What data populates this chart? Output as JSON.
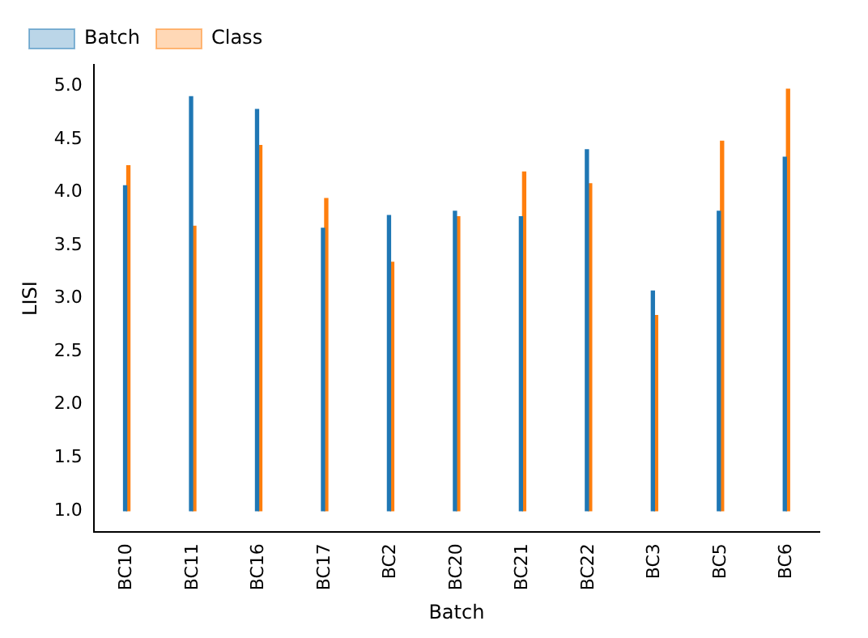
{
  "chart_data": {
    "type": "bar",
    "xlabel": "Batch",
    "ylabel": "LISI",
    "categories": [
      "BC10",
      "BC11",
      "BC16",
      "BC17",
      "BC2",
      "BC20",
      "BC21",
      "BC22",
      "BC3",
      "BC5",
      "BC6"
    ],
    "series": [
      {
        "name": "Batch",
        "color": "#1f77b4",
        "base": [
          1,
          1,
          1,
          1,
          1,
          1,
          1,
          1,
          1,
          1,
          1
        ],
        "values": [
          3.06,
          3.9,
          3.78,
          2.66,
          2.78,
          2.82,
          2.77,
          3.4,
          2.07,
          2.82,
          3.33
        ]
      },
      {
        "name": "Class",
        "color": "#ff7f0e",
        "base": [
          1,
          1,
          1,
          1,
          1,
          1,
          1,
          1,
          1,
          1,
          1
        ],
        "values": [
          3.25,
          2.68,
          3.44,
          2.94,
          2.34,
          2.77,
          3.19,
          3.08,
          1.84,
          3.48,
          3.97
        ]
      }
    ],
    "ylim": [
      0.8,
      5.2
    ],
    "yticks": [
      {
        "value": 1,
        "label": "1.0"
      },
      1.5,
      {
        "value": 2,
        "label": "2.0"
      },
      2.5,
      {
        "value": 3,
        "label": "3.0"
      },
      3.5,
      {
        "value": 4,
        "label": "4.0"
      },
      4.5,
      {
        "value": 5,
        "label": "5.0"
      }
    ],
    "legend": "top left"
  }
}
